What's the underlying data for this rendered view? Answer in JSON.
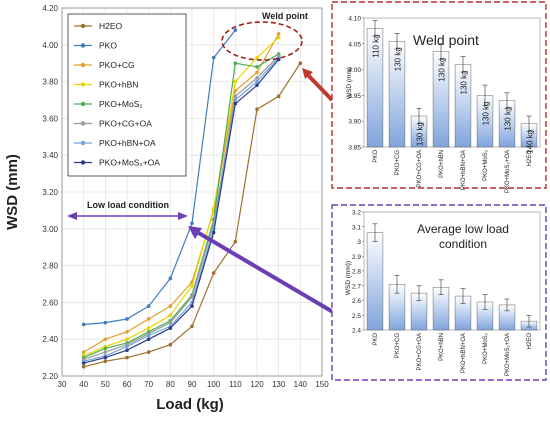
{
  "chart_data": [
    {
      "type": "line",
      "xlabel": "Load (kg)",
      "ylabel": "WSD (mm)",
      "xlim": [
        30,
        150
      ],
      "ylim": [
        2.2,
        4.2
      ],
      "xticks": [
        "30",
        "40",
        "50",
        "60",
        "70",
        "80",
        "90",
        "100",
        "110",
        "120",
        "130",
        "140",
        "150"
      ],
      "yticks": [
        "2.20",
        "2.40",
        "2.60",
        "2.80",
        "3.00",
        "3.20",
        "3.40",
        "3.60",
        "3.80",
        "4.00",
        "4.20"
      ],
      "grid": true,
      "legend_position": "top-left",
      "series": [
        {
          "name": "H2EO",
          "color": "#9c6f2a",
          "x": [
            40,
            50,
            60,
            70,
            80,
            90,
            100,
            110,
            120,
            130,
            140
          ],
          "y": [
            2.25,
            2.28,
            2.3,
            2.33,
            2.37,
            2.47,
            2.76,
            2.93,
            3.65,
            3.72,
            3.9
          ]
        },
        {
          "name": "PKO",
          "color": "#3e7cc0",
          "x": [
            40,
            50,
            60,
            70,
            80,
            90,
            100,
            110
          ],
          "y": [
            2.48,
            2.49,
            2.51,
            2.58,
            2.73,
            3.03,
            3.93,
            4.08
          ]
        },
        {
          "name": "PKO+CG",
          "color": "#e0a030",
          "x": [
            40,
            50,
            60,
            70,
            80,
            90,
            100,
            110,
            120,
            130
          ],
          "y": [
            2.33,
            2.4,
            2.44,
            2.51,
            2.58,
            2.71,
            3.1,
            3.75,
            3.85,
            4.06
          ]
        },
        {
          "name": "PKO+hBN",
          "color": "#e8d400",
          "x": [
            40,
            50,
            60,
            70,
            80,
            90,
            100,
            110,
            120,
            130
          ],
          "y": [
            2.31,
            2.36,
            2.4,
            2.46,
            2.53,
            2.69,
            3.11,
            3.8,
            3.93,
            4.04
          ]
        },
        {
          "name": "PKO+MoS₂",
          "color": "#4caf50",
          "x": [
            40,
            50,
            60,
            70,
            80,
            90,
            100,
            110,
            120,
            130
          ],
          "y": [
            2.3,
            2.35,
            2.38,
            2.44,
            2.5,
            2.64,
            3.05,
            3.9,
            3.88,
            3.95
          ]
        },
        {
          "name": "PKO+CG+OA",
          "color": "#9a9a9a",
          "x": [
            40,
            50,
            60,
            70,
            80,
            90,
            100,
            110,
            120,
            130
          ],
          "y": [
            2.29,
            2.33,
            2.37,
            2.43,
            2.49,
            2.63,
            3.03,
            3.72,
            3.82,
            3.94
          ]
        },
        {
          "name": "PKO+hBN+OA",
          "color": "#6fa5d8",
          "x": [
            40,
            50,
            60,
            70,
            80,
            90,
            100,
            110,
            120,
            130
          ],
          "y": [
            2.28,
            2.31,
            2.36,
            2.42,
            2.47,
            2.6,
            3.0,
            3.7,
            3.8,
            3.93
          ]
        },
        {
          "name": "PKO+MoS₂+OA",
          "color": "#2d3d8f",
          "x": [
            40,
            50,
            60,
            70,
            80,
            90,
            100,
            110,
            120,
            130
          ],
          "y": [
            2.27,
            2.3,
            2.34,
            2.4,
            2.46,
            2.58,
            2.98,
            3.68,
            3.78,
            3.92
          ]
        }
      ],
      "annotations": {
        "weld_point": "Weld point",
        "low_load": "Low load condition"
      }
    },
    {
      "type": "bar",
      "title": "Weld point",
      "ylabel": "WSD (mm)",
      "ylim": [
        3.85,
        4.1
      ],
      "yticks": [
        "3.85",
        "3.90",
        "3.95",
        "4.00",
        "4.05",
        "4.10"
      ],
      "categories": [
        "PKO",
        "PKO+CG",
        "PKO+CG+OA",
        "PKO+hBN",
        "PKO+hBN+OA",
        "PKO+MoS₂",
        "PKO+MoS₂+OA",
        "H2EO"
      ],
      "values": [
        4.08,
        4.055,
        3.91,
        4.035,
        4.01,
        3.95,
        3.94,
        3.895
      ],
      "errors": [
        0.015,
        0.015,
        0.015,
        0.015,
        0.015,
        0.02,
        0.015,
        0.015
      ],
      "bar_labels": [
        "110 kg",
        "130 kg",
        "130 kg",
        "130 kg",
        "130 kg",
        "130 kg",
        "130 kg",
        "140 kg"
      ]
    },
    {
      "type": "bar",
      "title": "Average low load condition",
      "title_lines": [
        "Average low load",
        "condition"
      ],
      "ylabel": "WSD (mm))",
      "ylim": [
        2.4,
        3.2
      ],
      "yticks": [
        "2.4",
        "2.5",
        "2.6",
        "2.7",
        "2.8",
        "2.9",
        "3",
        "3.1",
        "3.2"
      ],
      "categories": [
        "PKO",
        "PKO+CG",
        "PKO+CG+OA",
        "PKO+hBN",
        "PKO+hBN+OA",
        "PKO+MoS₂",
        "PKO+MoS₂+OA",
        "H2EO"
      ],
      "values": [
        3.06,
        2.71,
        2.65,
        2.69,
        2.63,
        2.59,
        2.57,
        2.46
      ],
      "errors": [
        0.06,
        0.06,
        0.05,
        0.05,
        0.05,
        0.05,
        0.04,
        0.04
      ]
    }
  ]
}
